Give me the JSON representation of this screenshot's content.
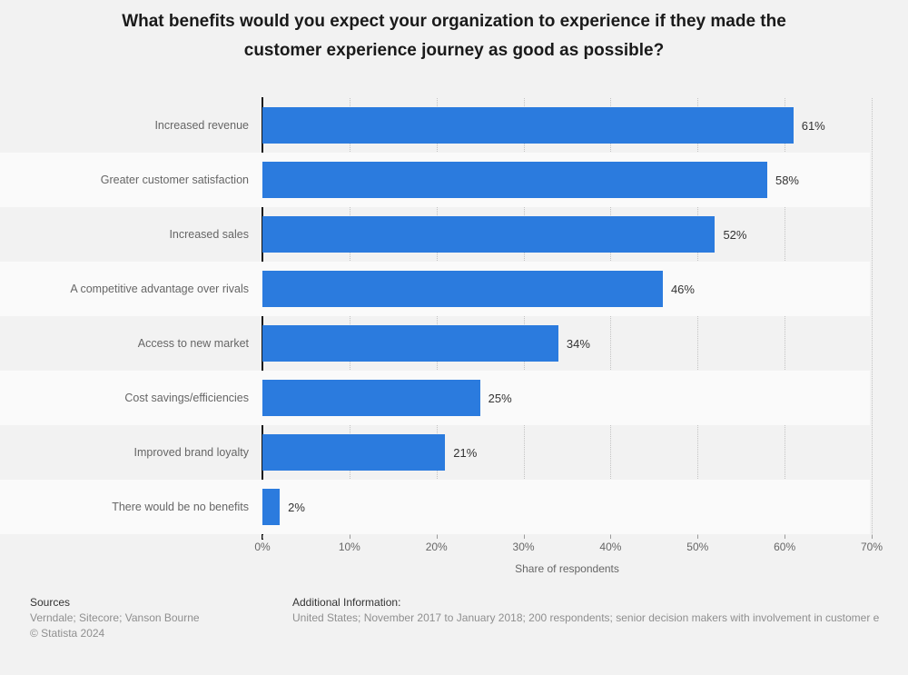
{
  "title_lines": [
    "What benefits would you expect your organization to experience if they made the",
    "customer experience journey as good as possible?"
  ],
  "chart_data": {
    "type": "bar",
    "orientation": "horizontal",
    "title": "What benefits would you expect your organization to experience if they made the customer experience journey as good as possible?",
    "categories": [
      "Increased revenue",
      "Greater customer satisfaction",
      "Increased sales",
      "A competitive advantage over rivals",
      "Access to new market",
      "Cost savings/efficiencies",
      "Improved brand loyalty",
      "There would be no benefits"
    ],
    "values": [
      61,
      58,
      52,
      46,
      34,
      25,
      21,
      2
    ],
    "value_labels": [
      "61%",
      "58%",
      "52%",
      "46%",
      "34%",
      "25%",
      "21%",
      "2%"
    ],
    "unit": "%",
    "xlabel": "Share of respondents",
    "xlim": [
      0,
      70
    ],
    "xtick_step": 10,
    "xtick_labels": [
      "0%",
      "10%",
      "20%",
      "30%",
      "40%",
      "50%",
      "60%",
      "70%"
    ],
    "grid": "vertical-dotted",
    "legend": "none",
    "bar_color": "#2b7bde"
  },
  "footer": {
    "sources_label": "Sources",
    "sources_text": "Verndale; Sitecore; Vanson Bourne",
    "copyright": "© Statista 2024",
    "additional_label": "Additional Information:",
    "additional_text": "United States; November 2017 to January 2018; 200 respondents; senior decision makers with involvement in customer e"
  },
  "colors": {
    "canvas_background": "#f2f2f2",
    "row_stripe": "#fafafa",
    "bar": "#2b7bde",
    "axis_line": "#151515",
    "gridline": "#c3c3c3",
    "category_label": "#666666",
    "value_label": "#333333",
    "footer_gray": "#8f8f8f"
  }
}
